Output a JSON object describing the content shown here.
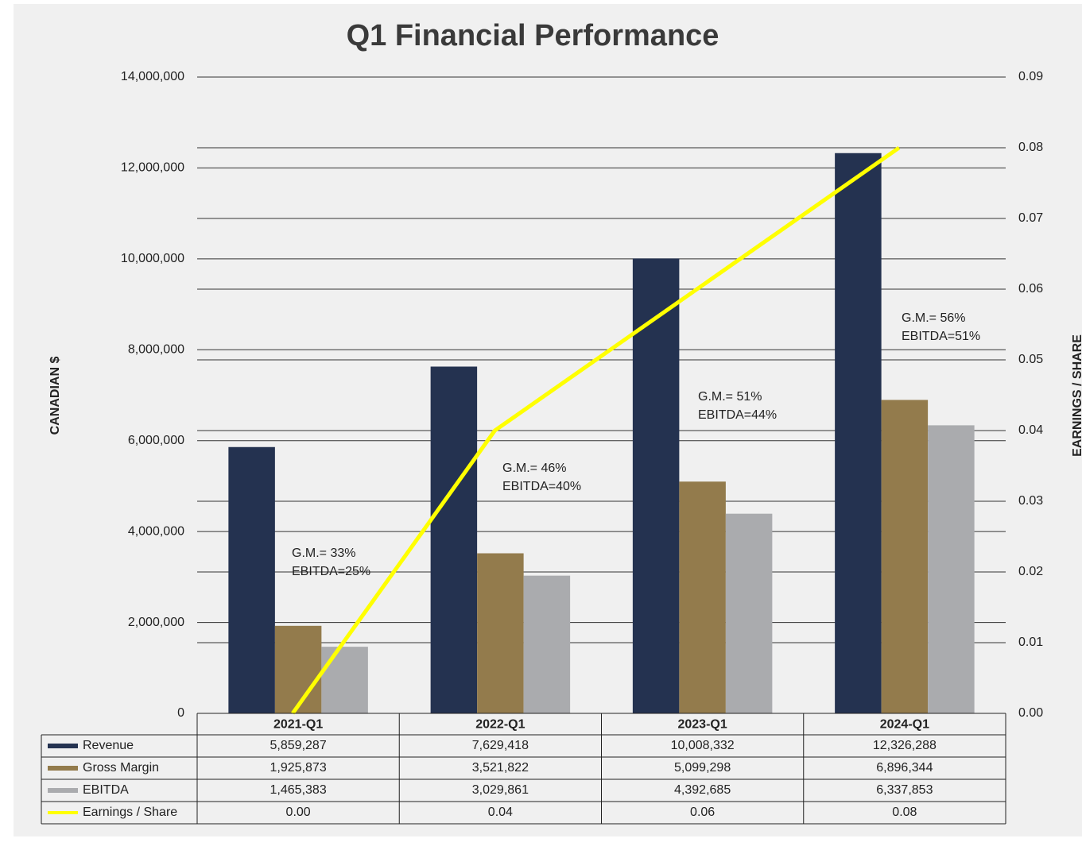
{
  "chart_data": {
    "type": "bar",
    "title": "Q1 Financial Performance",
    "y_label": "CANADIAN $",
    "y2_label": "EARNINGS / SHARE",
    "categories": [
      "2021-Q1",
      "2022-Q1",
      "2023-Q1",
      "2024-Q1"
    ],
    "series": [
      {
        "name": "Revenue",
        "type": "bar",
        "color": "#243250",
        "values": [
          5859287,
          7629418,
          10008332,
          12326288
        ],
        "value_labels": [
          "5,859,287",
          "7,629,418",
          "10,008,332",
          "12,326,288"
        ]
      },
      {
        "name": "Gross Margin",
        "type": "bar",
        "color": "#937b4c",
        "values": [
          1925873,
          3521822,
          5099298,
          6896344
        ],
        "value_labels": [
          "1,925,873",
          "3,521,822",
          "5,099,298",
          "6,896,344"
        ]
      },
      {
        "name": "EBITDA",
        "type": "bar",
        "color": "#aaabae",
        "values": [
          1465383,
          3029861,
          4392685,
          6337853
        ],
        "value_labels": [
          "1,465,383",
          "3,029,861",
          "4,392,685",
          "6,337,853"
        ]
      },
      {
        "name": "Earnings / Share",
        "type": "line",
        "axis": "y2",
        "color": "#ffff00",
        "values": [
          0,
          0.04,
          0.06,
          0.08
        ],
        "value_labels": [
          "0.00",
          "0.04",
          "0.06",
          "0.08"
        ]
      }
    ],
    "annotations": [
      [
        "G.M.= 33%",
        "EBITDA=25%"
      ],
      [
        "G.M.= 46%",
        "EBITDA=40%"
      ],
      [
        "G.M.= 51%",
        "EBITDA=44%"
      ],
      [
        "G.M.= 56%",
        "EBITDA=51%"
      ]
    ],
    "ylim": [
      0,
      14000000
    ],
    "yticks": [
      0,
      {
        "value": 2000000,
        "label": "2,000,000"
      },
      {
        "value": 4000000,
        "label": "4,000,000"
      },
      {
        "value": 6000000,
        "label": "6,000,000"
      },
      {
        "value": 8000000,
        "label": "8,000,000"
      },
      {
        "value": 10000000,
        "label": "10,000,000"
      },
      {
        "value": 12000000,
        "label": "12,000,000"
      },
      {
        "value": 14000000,
        "label": "14,000,000"
      }
    ],
    "y2lim": [
      0,
      0.09
    ],
    "y2ticks": [
      {
        "value": 0,
        "label": "0.00"
      },
      0.01,
      0.02,
      0.03,
      0.04,
      0.05,
      0.06,
      0.07,
      0.08,
      0.09
    ],
    "grid": true
  }
}
